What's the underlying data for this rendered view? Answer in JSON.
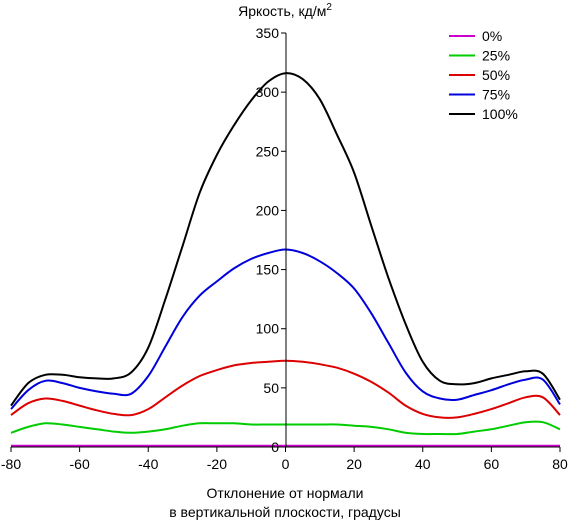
{
  "chart_data": {
    "type": "line",
    "ylabel": "Яркость, кд/м",
    "ylabel_sup": "2",
    "xlabel_lines": [
      "Отклонение от нормали",
      "в вертикальной плоскости, градусы"
    ],
    "xlim": [
      -80,
      80
    ],
    "ylim": [
      0,
      350
    ],
    "xticks": [
      -80,
      -60,
      -40,
      -20,
      0,
      20,
      40,
      60,
      80
    ],
    "yticks": [
      0,
      50,
      100,
      150,
      200,
      250,
      300,
      350
    ],
    "grid": false,
    "legend_position": "top-right",
    "x": [
      -80,
      -75,
      -70,
      -65,
      -60,
      -55,
      -50,
      -45,
      -40,
      -35,
      -30,
      -25,
      -20,
      -15,
      -10,
      -5,
      0,
      5,
      10,
      15,
      20,
      25,
      30,
      35,
      40,
      45,
      50,
      55,
      60,
      65,
      70,
      75,
      80
    ],
    "series": [
      {
        "name": "0%",
        "color": "#cc00cc",
        "values": [
          1,
          1,
          1,
          1,
          1,
          1,
          1,
          1,
          1,
          1,
          1,
          1,
          1,
          1,
          1,
          1,
          1,
          1,
          1,
          1,
          1,
          1,
          1,
          1,
          1,
          1,
          1,
          1,
          1,
          1,
          1,
          1,
          1
        ]
      },
      {
        "name": "25%",
        "color": "#00cc00",
        "values": [
          12,
          17,
          20,
          19,
          17,
          15,
          13,
          12,
          13,
          15,
          18,
          20,
          20,
          20,
          19,
          19,
          19,
          19,
          19,
          19,
          18,
          17,
          15,
          12,
          11,
          11,
          11,
          13,
          15,
          18,
          21,
          21,
          15
        ]
      },
      {
        "name": "50%",
        "color": "#dd0000",
        "values": [
          27,
          37,
          41,
          39,
          35,
          31,
          28,
          27,
          32,
          42,
          52,
          60,
          65,
          69,
          71,
          72,
          73,
          72,
          70,
          67,
          62,
          55,
          46,
          35,
          28,
          25,
          25,
          28,
          32,
          37,
          42,
          42,
          27
        ]
      },
      {
        "name": "75%",
        "color": "#0000dd",
        "values": [
          32,
          48,
          56,
          54,
          50,
          47,
          45,
          45,
          60,
          85,
          110,
          128,
          140,
          151,
          159,
          164,
          167,
          164,
          157,
          147,
          134,
          113,
          88,
          63,
          47,
          41,
          40,
          44,
          48,
          53,
          57,
          57,
          36
        ]
      },
      {
        "name": "100%",
        "color": "#000000",
        "values": [
          35,
          54,
          61,
          61,
          59,
          58,
          58,
          63,
          84,
          125,
          170,
          215,
          247,
          272,
          293,
          309,
          316,
          311,
          294,
          264,
          232,
          187,
          143,
          104,
          72,
          56,
          53,
          54,
          58,
          61,
          64,
          62,
          40
        ]
      }
    ]
  }
}
